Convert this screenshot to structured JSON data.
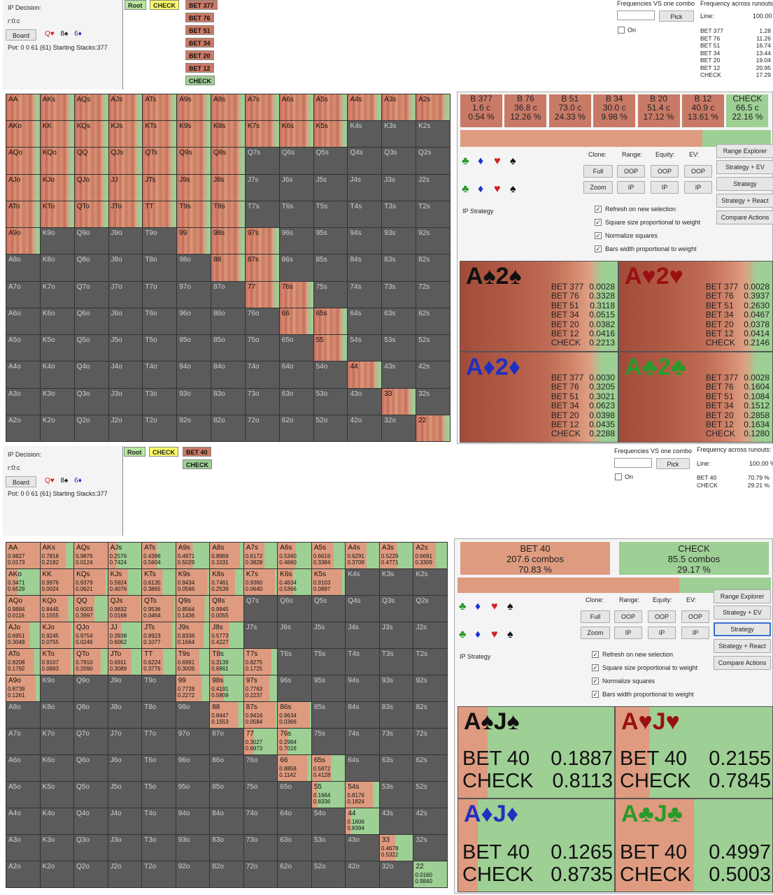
{
  "colors": {
    "bet": "#c97a66",
    "check": "#9ecf94",
    "dead": "#5b5b5b",
    "bet_light": "#de9b80"
  },
  "top": {
    "decision_title": "IP Decision:",
    "line": "r:0:c",
    "board_button": "Board",
    "board_cards": [
      {
        "rank": "Q",
        "suit": "heart-icon",
        "glyph": "♥",
        "color": "#d02020"
      },
      {
        "rank": "8",
        "suit": "spade-icon",
        "glyph": "♠",
        "color": "#111"
      },
      {
        "rank": "6",
        "suit": "diamond-icon",
        "glyph": "♦",
        "color": "#2030d0"
      }
    ],
    "pot_text": "Pot: 0 0 61 (61) Starting Stacks:377",
    "tree": {
      "root": "Root",
      "check": "CHECK",
      "actions": [
        "BET 377",
        "BET 76",
        "BET 51",
        "BET 34",
        "BET 20",
        "BET 12",
        "CHECK"
      ]
    },
    "freq_vs_label": "Frequencies VS one combo",
    "pick_button": "Pick",
    "on_label": "On",
    "runouts_label": "Frequency across runouts:",
    "line_label": "Line:",
    "line_value": "100.00",
    "runouts": [
      {
        "label": "BET 377",
        "value": "1.28"
      },
      {
        "label": "BET 76",
        "value": "11.26"
      },
      {
        "label": "BET 51",
        "value": "16.74"
      },
      {
        "label": "BET 34",
        "value": "13.44"
      },
      {
        "label": "BET 20",
        "value": "19.04"
      },
      {
        "label": "BET 12",
        "value": "20.95"
      },
      {
        "label": "CHECK",
        "value": "17.29"
      }
    ],
    "grid": [
      [
        "AA",
        "AKs",
        "AQs",
        "AJs",
        "ATs",
        "A9s",
        "A8s",
        "A7s",
        "A6s",
        "A5s",
        "A4s",
        "A3s",
        "A2s"
      ],
      [
        "AKo",
        "KK",
        "KQs",
        "KJs",
        "KTs",
        "K9s",
        "K8s",
        "K7s",
        "K6s",
        "K5s",
        "K4s",
        "K3s",
        "K2s"
      ],
      [
        "AQo",
        "KQo",
        "QQ",
        "QJs",
        "QTs",
        "Q9s",
        "Q8s",
        "Q7s",
        "Q6s",
        "Q5s",
        "Q4s",
        "Q3s",
        "Q2s"
      ],
      [
        "AJo",
        "KJo",
        "QJo",
        "JJ",
        "JTs",
        "J9s",
        "J8s",
        "J7s",
        "J6s",
        "J5s",
        "J4s",
        "J3s",
        "J2s"
      ],
      [
        "ATo",
        "KTo",
        "QTo",
        "JTo",
        "TT",
        "T9s",
        "T8s",
        "T7s",
        "T6s",
        "T5s",
        "T4s",
        "T3s",
        "T2s"
      ],
      [
        "A9o",
        "K9o",
        "Q9o",
        "J9o",
        "T9o",
        "99",
        "98s",
        "97s",
        "96s",
        "95s",
        "94s",
        "93s",
        "92s"
      ],
      [
        "A8o",
        "K8o",
        "Q8o",
        "J8o",
        "T8o",
        "98o",
        "88",
        "87s",
        "86s",
        "85s",
        "84s",
        "83s",
        "82s"
      ],
      [
        "A7o",
        "K7o",
        "Q7o",
        "J7o",
        "T7o",
        "97o",
        "87o",
        "77",
        "76s",
        "75s",
        "74s",
        "73s",
        "72s"
      ],
      [
        "A6o",
        "K6o",
        "Q6o",
        "J6o",
        "T6o",
        "96o",
        "86o",
        "76o",
        "66",
        "65s",
        "64s",
        "63s",
        "62s"
      ],
      [
        "A5o",
        "K5o",
        "Q5o",
        "J5o",
        "T5o",
        "95o",
        "85o",
        "75o",
        "65o",
        "55",
        "54s",
        "53s",
        "52s"
      ],
      [
        "A4o",
        "K4o",
        "Q4o",
        "J4o",
        "T4o",
        "94o",
        "84o",
        "74o",
        "64o",
        "54o",
        "44",
        "43s",
        "42s"
      ],
      [
        "A3o",
        "K3o",
        "Q3o",
        "J3o",
        "T3o",
        "93o",
        "83o",
        "73o",
        "63o",
        "53o",
        "43o",
        "33",
        "32s"
      ],
      [
        "A2o",
        "K2o",
        "Q2o",
        "J2o",
        "T2o",
        "92o",
        "82o",
        "72o",
        "62o",
        "52o",
        "42o",
        "32o",
        "22"
      ]
    ],
    "summary": [
      {
        "label": "B 377",
        "combos": "1.6 c",
        "pct": "0.54 %"
      },
      {
        "label": "B 76",
        "combos": "36.8 c",
        "pct": "12.26 %"
      },
      {
        "label": "B 51",
        "combos": "73.0 c",
        "pct": "24.33 %"
      },
      {
        "label": "B 34",
        "combos": "30.0 c",
        "pct": "9.98 %"
      },
      {
        "label": "B 20",
        "combos": "51.4 c",
        "pct": "17.12 %"
      },
      {
        "label": "B 12",
        "combos": "40.9 c",
        "pct": "13.61 %"
      },
      {
        "label": "CHECK",
        "combos": "66.5 c",
        "pct": "22.16 %"
      }
    ],
    "combos": [
      {
        "title": "A♠2♠",
        "color": "#111",
        "values": [
          [
            "BET 377",
            "0.0028"
          ],
          [
            "BET 76",
            "0.3328"
          ],
          [
            "BET 51",
            "0.3118"
          ],
          [
            "BET 34",
            "0.0515"
          ],
          [
            "BET 20",
            "0.0382"
          ],
          [
            "BET 12",
            "0.0416"
          ],
          [
            "CHECK",
            "0.2213"
          ]
        ]
      },
      {
        "title": "A♥2♥",
        "color": "#9a1010",
        "values": [
          [
            "BET 377",
            "0.0028"
          ],
          [
            "BET 76",
            "0.3937"
          ],
          [
            "BET 51",
            "0.2630"
          ],
          [
            "BET 34",
            "0.0467"
          ],
          [
            "BET 20",
            "0.0378"
          ],
          [
            "BET 12",
            "0.0414"
          ],
          [
            "CHECK",
            "0.2146"
          ]
        ]
      },
      {
        "title": "A♦2♦",
        "color": "#2030c0",
        "values": [
          [
            "BET 377",
            "0.0030"
          ],
          [
            "BET 76",
            "0.3205"
          ],
          [
            "BET 51",
            "0.3021"
          ],
          [
            "BET 34",
            "0.0623"
          ],
          [
            "BET 20",
            "0.0398"
          ],
          [
            "BET 12",
            "0.0435"
          ],
          [
            "CHECK",
            "0.2288"
          ]
        ]
      },
      {
        "title": "A♣2♣",
        "color": "#2a9a2a",
        "values": [
          [
            "BET 377",
            "0.0028"
          ],
          [
            "BET 76",
            "0.1604"
          ],
          [
            "BET 51",
            "0.1084"
          ],
          [
            "BET 34",
            "0.1512"
          ],
          [
            "BET 20",
            "0.2858"
          ],
          [
            "BET 12",
            "0.1634"
          ],
          [
            "CHECK",
            "0.1280"
          ]
        ]
      }
    ]
  },
  "bottom": {
    "tree": {
      "root": "Root",
      "check": "CHECK",
      "bet": "BET 40",
      "child": "CHECK"
    },
    "line_value": "100.00 %",
    "runouts": [
      {
        "label": "BET 40",
        "value": "70.79 %"
      },
      {
        "label": "CHECK",
        "value": "29.21 %"
      }
    ],
    "cell_values": {
      "AA": [
        "0.9827",
        "0.0173"
      ],
      "AKs": [
        "0.7818",
        "0.2182"
      ],
      "AQs": [
        "0.9876",
        "0.0124"
      ],
      "AJs": [
        "0.2576",
        "0.7424"
      ],
      "ATs": [
        "0.4396",
        "0.5604"
      ],
      "A9s": [
        "0.4971",
        "0.5029"
      ],
      "A8s": [
        "0.8969",
        "0.1031"
      ],
      "A7s": [
        "0.6172",
        "0.3828"
      ],
      "A6s": [
        "0.5340",
        "0.4660"
      ],
      "A5s": [
        "0.6616",
        "0.3384"
      ],
      "A4s": [
        "0.6291",
        "0.3709"
      ],
      "A3s": [
        "0.5229",
        "0.4771"
      ],
      "A2s": [
        "0.6691",
        "0.3309"
      ],
      "AKo": [
        "0.3471",
        "0.6529"
      ],
      "KK": [
        "0.9976",
        "0.0024"
      ],
      "KQs": [
        "0.9379",
        "0.0621"
      ],
      "KJs": [
        "0.5924",
        "0.4076"
      ],
      "KTs": [
        "0.6135",
        "0.3865"
      ],
      "K9s": [
        "0.9434",
        "0.0566"
      ],
      "K8s": [
        "0.7461",
        "0.2539"
      ],
      "K7s": [
        "0.9360",
        "0.0640"
      ],
      "K6s": [
        "0.4634",
        "0.5366"
      ],
      "K5s": [
        "0.9103",
        "0.0897"
      ],
      "AQo": [
        "0.9884",
        "0.0116"
      ],
      "KQo": [
        "0.8445",
        "0.1555"
      ],
      "QQ": [
        "0.6003",
        "0.3997"
      ],
      "QJs": [
        "0.9832",
        "0.0168"
      ],
      "QTs": [
        "0.9536",
        "0.0464"
      ],
      "Q9s": [
        "0.8564",
        "0.1436"
      ],
      "Q8s": [
        "0.9945",
        "0.0055"
      ],
      "AJo": [
        "0.6951",
        "0.3049"
      ],
      "KJo": [
        "0.9245",
        "0.0755"
      ],
      "QJo": [
        "0.9754",
        "0.0246"
      ],
      "JJ": [
        "0.3938",
        "0.6062"
      ],
      "JTs": [
        "0.8923",
        "0.1077"
      ],
      "J9s": [
        "0.8336",
        "0.1664"
      ],
      "J8s": [
        "0.5773",
        "0.4227"
      ],
      "ATo": [
        "0.8208",
        "0.1792"
      ],
      "KTo": [
        "0.9107",
        "0.0893"
      ],
      "QTo": [
        "0.7910",
        "0.2090"
      ],
      "JTo": [
        "0.6911",
        "0.3089"
      ],
      "TT": [
        "0.6224",
        "0.3776"
      ],
      "T9s": [
        "0.6991",
        "0.3009"
      ],
      "T8s": [
        "0.3139",
        "0.6861"
      ],
      "T7s": [
        "0.8275",
        "0.1725"
      ],
      "A9o": [
        "0.8739",
        "0.1261"
      ],
      "99": [
        "0.7728",
        "0.2272"
      ],
      "98s": [
        "0.4191",
        "0.5809"
      ],
      "97s": [
        "0.7763",
        "0.2237"
      ],
      "88": [
        "0.8447",
        "0.1553"
      ],
      "87s": [
        "0.9416",
        "0.0584"
      ],
      "86s": [
        "0.9634",
        "0.0366"
      ],
      "77": [
        "0.3027",
        "0.6973"
      ],
      "76s": [
        "0.2984",
        "0.7016"
      ],
      "66": [
        "0.8858",
        "0.1142"
      ],
      "65s": [
        "0.5872",
        "0.4128"
      ],
      "55": [
        "0.1664",
        "0.8336"
      ],
      "54s": [
        "0.8176",
        "0.1824"
      ],
      "44": [
        "0.1606",
        "0.8394"
      ],
      "33": [
        "0.4678",
        "0.5322"
      ],
      "22": [
        "0.0160",
        "0.9840"
      ]
    },
    "summary": [
      {
        "label": "BET 40",
        "combos": "207.6 combos",
        "pct": "70.83 %"
      },
      {
        "label": "CHECK",
        "combos": "85.5 combos",
        "pct": "29.17 %"
      }
    ],
    "combos": [
      {
        "title": "A♠J♠",
        "color": "#111",
        "values": [
          [
            "BET 40",
            "0.1887"
          ],
          [
            "CHECK",
            "0.8113"
          ]
        ]
      },
      {
        "title": "A♥J♥",
        "color": "#9a1010",
        "values": [
          [
            "BET 40",
            "0.2155"
          ],
          [
            "CHECK",
            "0.7845"
          ]
        ]
      },
      {
        "title": "A♦J♦",
        "color": "#2030c0",
        "values": [
          [
            "BET 40",
            "0.1265"
          ],
          [
            "CHECK",
            "0.8735"
          ]
        ]
      },
      {
        "title": "A♣J♣",
        "color": "#2a9a2a",
        "values": [
          [
            "BET 40",
            "0.4997"
          ],
          [
            "CHECK",
            "0.5003"
          ]
        ]
      }
    ]
  },
  "controls": {
    "clone_label": "Clone:",
    "range_label": "Range:",
    "equity_label": "Equity:",
    "ev_label": "EV:",
    "full": "Full",
    "zoom": "Zoom",
    "oop": "OOP",
    "ip": "IP",
    "range_explorer": "Range Explorer",
    "strategy_ev": "Strategy + EV",
    "strategy": "Strategy",
    "strategy_react": "Strategy + React",
    "compare_actions": "Compare Actions",
    "ip_strategy": "IP Strategy",
    "checks": [
      "Refresh on new selection",
      "Square size proportional to weight",
      "Normalize squares",
      "Bars width proportional to weight"
    ]
  }
}
